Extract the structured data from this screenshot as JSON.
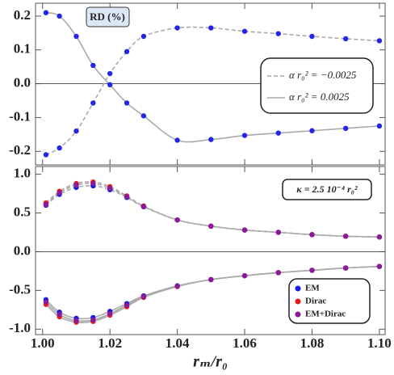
{
  "chart_data": [
    {
      "type": "line",
      "annotation": "RD (%)",
      "x": [
        1.001,
        1.005,
        1.01,
        1.015,
        1.02,
        1.025,
        1.03,
        1.04,
        1.05,
        1.06,
        1.07,
        1.08,
        1.09,
        1.1
      ],
      "xlim": [
        0.9979,
        1.1017
      ],
      "ylim": [
        -0.24,
        0.238
      ],
      "yticks": [
        {
          "value": -0.2,
          "label": "-0.2"
        },
        {
          "value": -0.1,
          "label": "-0.1"
        },
        {
          "value": 0,
          "label": "0.0"
        },
        0.1,
        0.2
      ],
      "marker_color": "#2525e8",
      "legend": "right",
      "series": [
        {
          "name": "α r₀² = −0.0025",
          "color": "#aaaaaa",
          "dashed": true,
          "values": [
            -0.21,
            -0.19,
            -0.14,
            -0.057,
            0.03,
            0.095,
            0.14,
            0.165,
            0.165,
            0.155,
            0.148,
            0.14,
            0.133,
            0.127
          ]
        },
        {
          "name": "α r₀² = 0.0025",
          "color": "#aaaaaa",
          "dashed": false,
          "values": [
            0.21,
            0.2,
            0.14,
            0.054,
            -0.003,
            -0.057,
            -0.095,
            -0.167,
            -0.165,
            -0.153,
            -0.146,
            -0.139,
            -0.132,
            -0.125
          ]
        }
      ]
    },
    {
      "type": "line",
      "annotation": "κ = 2.5 10⁻⁴ r₀²",
      "x": [
        1.001,
        1.005,
        1.01,
        1.015,
        1.02,
        1.025,
        1.03,
        1.04,
        1.05,
        1.06,
        1.07,
        1.08,
        1.09,
        1.1
      ],
      "xlim": [
        0.9979,
        1.1017
      ],
      "ylim": [
        -1.07,
        1.1
      ],
      "xticks": [
        {
          "value": 1,
          "label": "1.00"
        },
        1.02,
        1.04,
        1.06,
        1.08,
        {
          "value": 1.1,
          "label": "1.10"
        }
      ],
      "yticks": [
        {
          "value": -1,
          "label": "-1.0"
        },
        {
          "value": -0.5,
          "label": "-0.5"
        },
        {
          "value": 0,
          "label": "0.0"
        },
        0.5,
        {
          "value": 1,
          "label": "1.0"
        }
      ],
      "xlabel": "rₘ/r₀",
      "curve_color": "#aaaaaa",
      "legend": "lower right",
      "series": [
        {
          "name": "EM",
          "color": "#1a1ae6",
          "upper": [
            0.6,
            0.74,
            0.83,
            0.85,
            0.8,
            0.7,
            0.58,
            0.41,
            0.33,
            0.28,
            0.25,
            0.22,
            0.2,
            0.19
          ],
          "lower": [
            -0.62,
            -0.78,
            -0.86,
            -0.85,
            -0.77,
            -0.67,
            -0.57,
            -0.44,
            -0.36,
            -0.31,
            -0.27,
            -0.24,
            -0.21,
            -0.19
          ]
        },
        {
          "name": "Dirac",
          "color": "#e61a1a",
          "upper": [
            0.63,
            0.78,
            0.88,
            0.9,
            0.84,
            0.72,
            0.59,
            0.41,
            0.33,
            0.28,
            0.25,
            0.22,
            0.2,
            0.19
          ],
          "lower": [
            -0.68,
            -0.84,
            -0.91,
            -0.9,
            -0.82,
            -0.71,
            -0.59,
            -0.45,
            -0.36,
            -0.31,
            -0.27,
            -0.24,
            -0.21,
            -0.19
          ]
        },
        {
          "name": "EM+Dirac",
          "color": "#8a1a99",
          "upper": [
            0.61,
            0.76,
            0.86,
            0.88,
            0.82,
            0.71,
            0.585,
            0.41,
            0.33,
            0.28,
            0.25,
            0.22,
            0.2,
            0.19
          ],
          "lower": [
            -0.65,
            -0.81,
            -0.89,
            -0.88,
            -0.8,
            -0.69,
            -0.58,
            -0.445,
            -0.36,
            -0.31,
            -0.27,
            -0.24,
            -0.21,
            -0.19
          ]
        }
      ]
    }
  ]
}
